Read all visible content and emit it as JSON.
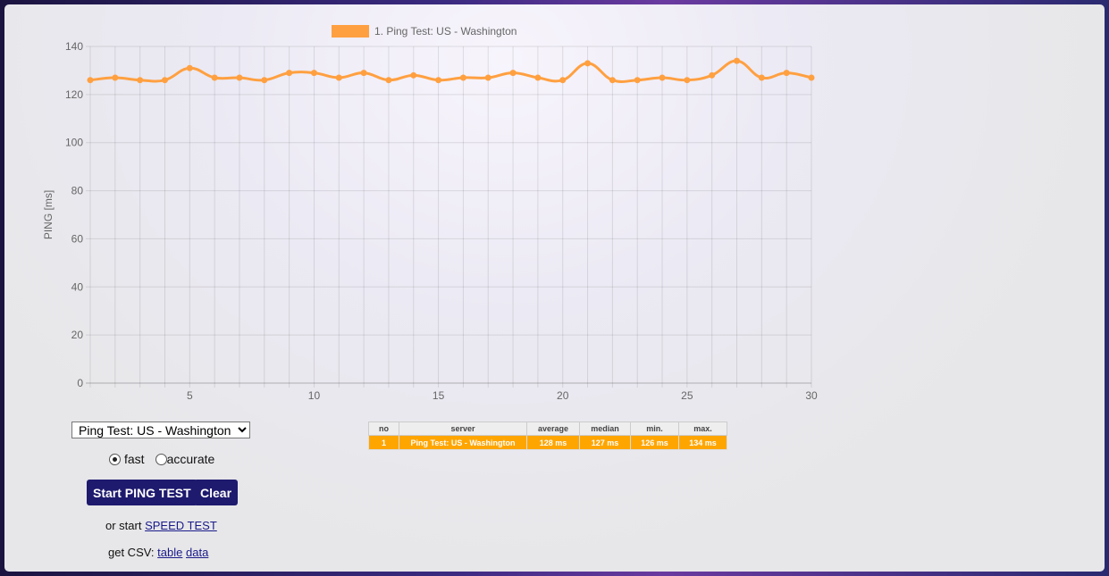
{
  "chart_data": {
    "type": "line",
    "legend": "1. Ping Test: US - Washington",
    "ylabel": "PING [ms]",
    "x": [
      1,
      2,
      3,
      4,
      5,
      6,
      7,
      8,
      9,
      10,
      11,
      12,
      13,
      14,
      15,
      16,
      17,
      18,
      19,
      20,
      21,
      22,
      23,
      24,
      25,
      26,
      27,
      28,
      29,
      30
    ],
    "series": [
      {
        "name": "1. Ping Test: US - Washington",
        "color": "#ffa040",
        "values": [
          126,
          127,
          126,
          126,
          131,
          127,
          127,
          126,
          129,
          129,
          127,
          129,
          126,
          128,
          126,
          127,
          127,
          129,
          127,
          126,
          133,
          126,
          126,
          127,
          126,
          128,
          134,
          127,
          129,
          127
        ]
      }
    ],
    "xticks": [
      "5",
      "10",
      "15",
      "20",
      "25",
      "30"
    ],
    "yticks": [
      "0",
      "20",
      "40",
      "60",
      "80",
      "100",
      "120",
      "140"
    ],
    "xlim": [
      1,
      30
    ],
    "ylim": [
      0,
      140
    ],
    "grid": true,
    "legend_position": "top"
  },
  "controls": {
    "server_select": "Ping Test: US - Washington",
    "mode_fast": "fast",
    "mode_accurate": "accurate",
    "selected_mode": "fast",
    "start_button": "Start PING TEST",
    "clear_button": "Clear",
    "or_start": "or start",
    "speed_test_link": "SPEED TEST",
    "get_csv": "get CSV:",
    "csv_table": "table",
    "csv_data": "data"
  },
  "results": {
    "headers": [
      "no",
      "server",
      "average",
      "median",
      "min.",
      "max."
    ],
    "rows": [
      [
        "1",
        "Ping Test: US - Washington",
        "128 ms",
        "127 ms",
        "126 ms",
        "134 ms"
      ]
    ]
  }
}
